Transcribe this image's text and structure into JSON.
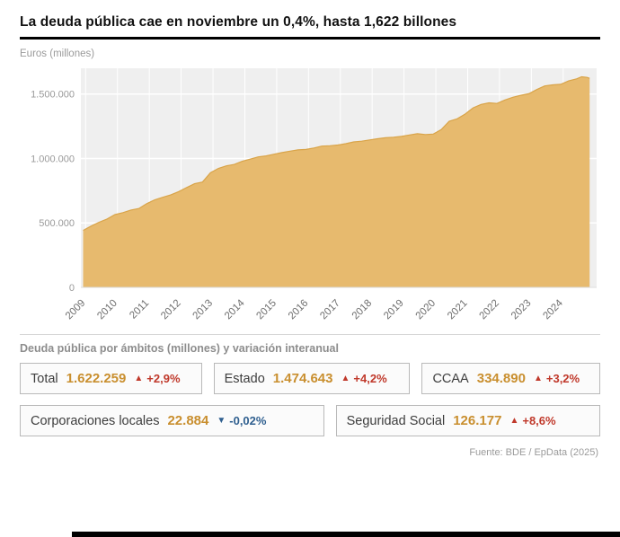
{
  "title": "La deuda pública cae en noviembre un 0,4%, hasta 1,622 billones",
  "chart": {
    "axis_caption": "Euros (millones)"
  },
  "chart_data": {
    "type": "area",
    "title": "La deuda pública cae en noviembre un 0,4%, hasta 1,622 billones",
    "ylabel": "Euros (millones)",
    "xlabel": "",
    "legend": [],
    "grid": true,
    "xlim": [
      2008.85,
      2025.05
    ],
    "ylim": [
      0,
      1700000
    ],
    "x_ticks": [
      "2009",
      "2010",
      "2011",
      "2012",
      "2013",
      "2014",
      "2015",
      "2016",
      "2017",
      "2018",
      "2019",
      "2020",
      "2021",
      "2022",
      "2023",
      "2024"
    ],
    "x_tick_positions": [
      2009,
      2010,
      2011,
      2012,
      2013,
      2014,
      2015,
      2016,
      2017,
      2018,
      2019,
      2020,
      2021,
      2022,
      2023,
      2024
    ],
    "y_ticks": [
      "0",
      "500.000",
      "1.000.000",
      "1.500.000"
    ],
    "y_tick_values": [
      0,
      500000,
      1000000,
      1500000
    ],
    "fill_color": "#e7ba6e",
    "stroke_color": "#d9a449",
    "plot_bg_color": "#efefef",
    "x": [
      2008.92,
      2009.17,
      2009.42,
      2009.67,
      2009.92,
      2010.17,
      2010.42,
      2010.67,
      2010.92,
      2011.17,
      2011.42,
      2011.67,
      2011.92,
      2012.17,
      2012.42,
      2012.67,
      2012.92,
      2013.17,
      2013.42,
      2013.67,
      2013.92,
      2014.17,
      2014.42,
      2014.67,
      2014.92,
      2015.17,
      2015.42,
      2015.67,
      2015.92,
      2016.17,
      2016.42,
      2016.67,
      2016.92,
      2017.17,
      2017.42,
      2017.67,
      2017.92,
      2018.17,
      2018.42,
      2018.67,
      2018.92,
      2019.17,
      2019.42,
      2019.67,
      2019.92,
      2020.17,
      2020.42,
      2020.67,
      2020.92,
      2021.17,
      2021.42,
      2021.67,
      2021.92,
      2022.17,
      2022.42,
      2022.67,
      2022.92,
      2023.17,
      2023.42,
      2023.67,
      2023.92,
      2024.17,
      2024.42,
      2024.58,
      2024.75,
      2024.83
    ],
    "values": [
      442000,
      475000,
      505000,
      530000,
      565000,
      580000,
      600000,
      612000,
      649000,
      679000,
      699000,
      717000,
      743000,
      774000,
      804000,
      817000,
      890000,
      923000,
      943000,
      954000,
      978000,
      995000,
      1012000,
      1020000,
      1033000,
      1046000,
      1057000,
      1067000,
      1070000,
      1081000,
      1096000,
      1099000,
      1104000,
      1115000,
      1129000,
      1134000,
      1144000,
      1153000,
      1161000,
      1165000,
      1171000,
      1182000,
      1192000,
      1186000,
      1189000,
      1224000,
      1289000,
      1308000,
      1345000,
      1393000,
      1419000,
      1432000,
      1427000,
      1454000,
      1475000,
      1490000,
      1502000,
      1535000,
      1563000,
      1571000,
      1575000,
      1602000,
      1618000,
      1634000,
      1629000,
      1622000
    ]
  },
  "section": {
    "heading": "Deuda pública por ámbitos (millones) y variación interanual"
  },
  "stats": [
    {
      "label": "Total",
      "value": "1.622.259",
      "delta": "+2,9%",
      "dir": "up",
      "row": 1
    },
    {
      "label": "Estado",
      "value": "1.474.643",
      "delta": "+4,2%",
      "dir": "up",
      "row": 1
    },
    {
      "label": "CCAA",
      "value": "334.890",
      "delta": "+3,2%",
      "dir": "up",
      "row": 1
    },
    {
      "label": "Corporaciones locales",
      "value": "22.884",
      "delta": "-0,02%",
      "dir": "down",
      "row": 2
    },
    {
      "label": "Seguridad Social",
      "value": "126.177",
      "delta": "+8,6%",
      "dir": "up",
      "row": 2
    }
  ],
  "footer": {
    "source": "Fuente: BDE / EpData (2025)"
  },
  "colors": {
    "value": "#c98f2f",
    "up": "#c0392b",
    "down": "#2f5f8f"
  }
}
